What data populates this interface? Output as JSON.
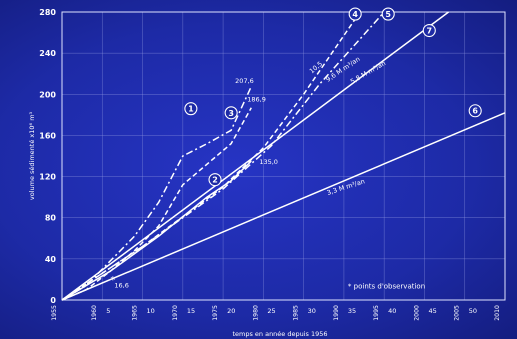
{
  "chart_data": {
    "type": "line",
    "xlabel": "temps en année depuis 1956",
    "ylabel": "volume sédimenté x10⁶ m³",
    "xlim": [
      0,
      55
    ],
    "ylim": [
      0,
      280
    ],
    "y_ticks": [
      0,
      40,
      80,
      120,
      160,
      200,
      240,
      280
    ],
    "x_ticks_years": [
      "1955",
      "1960",
      "1965",
      "1970",
      "1975",
      "1980",
      "1985",
      "1990",
      "1995",
      "2000",
      "2005",
      "2010"
    ],
    "x_ticks_offsets": [
      "5",
      "10",
      "15",
      "20",
      "25",
      "30",
      "35",
      "40",
      "45",
      "50"
    ],
    "grid": true,
    "legend": "* points d'observation",
    "series": [
      {
        "name": "1",
        "style": "dashdot",
        "x": [
          0,
          3,
          6,
          9,
          12,
          15,
          18,
          21,
          23.5
        ],
        "y": [
          0,
          14,
          38,
          62,
          95,
          140,
          152,
          165,
          207.6
        ]
      },
      {
        "name": "3",
        "style": "dash",
        "x": [
          0,
          3,
          6,
          9,
          12,
          15,
          18,
          21,
          23.5
        ],
        "y": [
          0,
          10,
          28,
          48,
          72,
          112,
          132,
          152,
          186.9
        ]
      },
      {
        "name": "2",
        "style": "solid",
        "x": [
          0,
          6,
          12,
          18,
          21,
          23.5
        ],
        "y": [
          0,
          28,
          62,
          100,
          116,
          135.0
        ]
      },
      {
        "name": "4",
        "style": "dash",
        "x": [
          0,
          10,
          20,
          25,
          30,
          37
        ],
        "y": [
          0,
          52,
          110,
          148,
          200,
          280
        ]
      },
      {
        "name": "5",
        "style": "dashdot",
        "x": [
          0,
          10,
          20,
          26,
          32,
          40
        ],
        "y": [
          0,
          52,
          108,
          150,
          210,
          280
        ]
      },
      {
        "name": "7",
        "style": "solid",
        "x": [
          0,
          48
        ],
        "y": [
          0,
          280
        ]
      },
      {
        "name": "6",
        "style": "solid",
        "x": [
          0,
          55
        ],
        "y": [
          0,
          182
        ]
      }
    ],
    "annotations": [
      {
        "text": "207,6",
        "x": 21.5,
        "y": 211
      },
      {
        "text": "186,9",
        "x": 23,
        "y": 193
      },
      {
        "text": "135,0",
        "x": 24.5,
        "y": 132
      },
      {
        "text": "16,6",
        "x": 6.5,
        "y": 12
      },
      {
        "text": "*",
        "x": 6,
        "y": 16.6
      },
      {
        "text": "10,5",
        "x": 31,
        "y": 220,
        "rotate": -40
      },
      {
        "text": "9,6 M m³/an",
        "x": 33,
        "y": 212,
        "rotate": -34
      },
      {
        "text": "5,8 M m³/an",
        "x": 36,
        "y": 210,
        "rotate": -30
      },
      {
        "text": "3,3 M m³/an",
        "x": 33,
        "y": 102,
        "rotate": -18
      }
    ]
  }
}
